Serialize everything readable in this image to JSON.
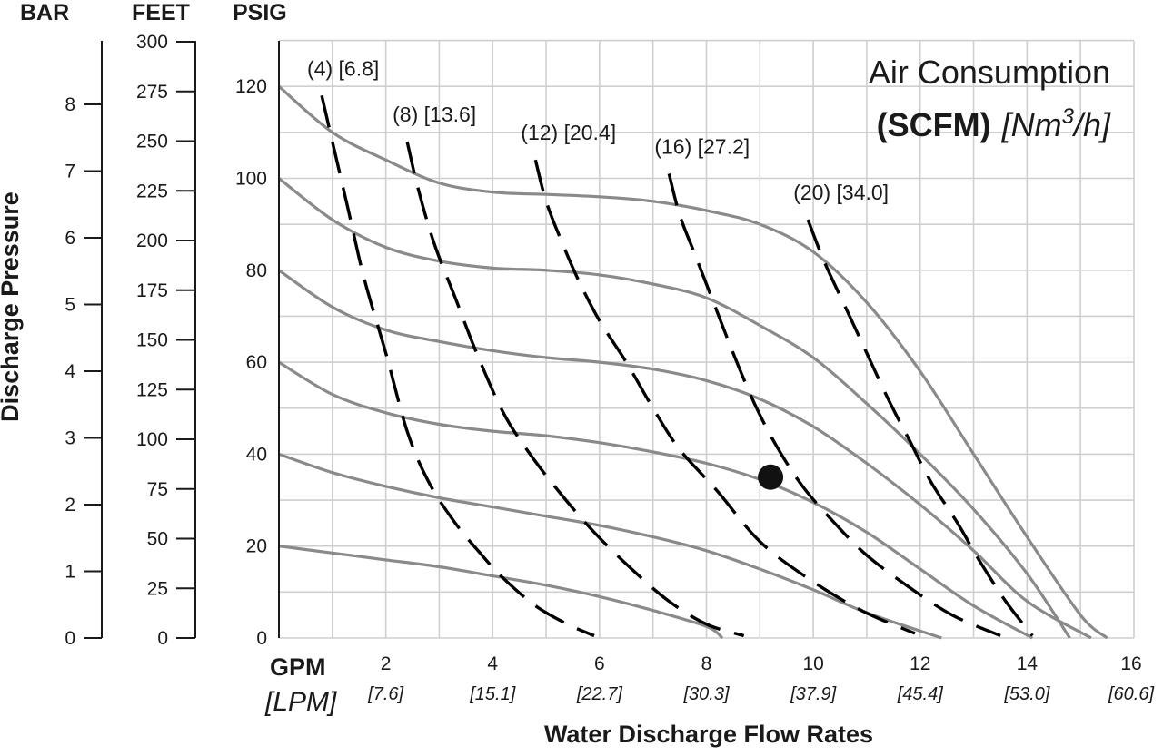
{
  "chart_data": {
    "type": "line",
    "title": "Air Consumption",
    "title_unit_bold": "(SCFM)",
    "title_unit_italic_pre": "[Nm",
    "title_unit_italic_sup": "3",
    "title_unit_italic_post": "/h]",
    "xlabel": "Water Discharge Flow Rates",
    "ylabel": "Discharge Pressure",
    "x_unit_primary": "GPM",
    "x_unit_secondary": "[LPM]",
    "xlim": [
      0,
      16
    ],
    "ylim": [
      0,
      130
    ],
    "grid": true,
    "x_ticks": [
      {
        "value": 2,
        "label": "2",
        "sub": "[7.6]"
      },
      {
        "value": 4,
        "label": "4",
        "sub": "[15.1]"
      },
      {
        "value": 6,
        "label": "6",
        "sub": "[22.7]"
      },
      {
        "value": 8,
        "label": "8",
        "sub": "[30.3]"
      },
      {
        "value": 10,
        "label": "10",
        "sub": "[37.9]"
      },
      {
        "value": 12,
        "label": "12",
        "sub": "[45.4]"
      },
      {
        "value": 14,
        "label": "14",
        "sub": "[53.0]"
      },
      {
        "value": 16,
        "label": "16",
        "sub": "[60.6]"
      }
    ],
    "psig_axis": {
      "header": "PSIG",
      "ticks": [
        0,
        20,
        40,
        60,
        80,
        100,
        120
      ]
    },
    "feet_axis": {
      "header": "FEET",
      "ticks": [
        0,
        25,
        50,
        75,
        100,
        125,
        150,
        175,
        200,
        225,
        250,
        275,
        300
      ]
    },
    "bar_axis": {
      "header": "BAR",
      "ticks": [
        0,
        1,
        2,
        3,
        4,
        5,
        6,
        7,
        8
      ]
    },
    "performance_curves": [
      {
        "points": [
          [
            0,
            120
          ],
          [
            1,
            110
          ],
          [
            2,
            104
          ],
          [
            3,
            99
          ],
          [
            4,
            97
          ],
          [
            5,
            96.5
          ],
          [
            6,
            96
          ],
          [
            7,
            95
          ],
          [
            8,
            93
          ],
          [
            9,
            90
          ],
          [
            10,
            84
          ],
          [
            11,
            73
          ],
          [
            12,
            58
          ],
          [
            13,
            40
          ],
          [
            14,
            22
          ],
          [
            15,
            5
          ],
          [
            15.5,
            0
          ]
        ]
      },
      {
        "points": [
          [
            0,
            100
          ],
          [
            1,
            91
          ],
          [
            2,
            85
          ],
          [
            3,
            82
          ],
          [
            4,
            80.5
          ],
          [
            5,
            80
          ],
          [
            6,
            79
          ],
          [
            7,
            77
          ],
          [
            8,
            74
          ],
          [
            9,
            68
          ],
          [
            10,
            61
          ],
          [
            11,
            51
          ],
          [
            12,
            40
          ],
          [
            13,
            28
          ],
          [
            14,
            14
          ],
          [
            14.8,
            0
          ]
        ]
      },
      {
        "points": [
          [
            0,
            80
          ],
          [
            1,
            72
          ],
          [
            2,
            67
          ],
          [
            3,
            64.5
          ],
          [
            4,
            62.5
          ],
          [
            5,
            61
          ],
          [
            6,
            60
          ],
          [
            7,
            58.5
          ],
          [
            8,
            56
          ],
          [
            9,
            52
          ],
          [
            10,
            46
          ],
          [
            11,
            38
          ],
          [
            12,
            29
          ],
          [
            13,
            19
          ],
          [
            14,
            8
          ],
          [
            15.2,
            0
          ]
        ]
      },
      {
        "points": [
          [
            0,
            60
          ],
          [
            1,
            53
          ],
          [
            2,
            49
          ],
          [
            3,
            46.5
          ],
          [
            4,
            45
          ],
          [
            5,
            44
          ],
          [
            6,
            42.5
          ],
          [
            7,
            40.5
          ],
          [
            8,
            38
          ],
          [
            9,
            34.5
          ],
          [
            10,
            29.5
          ],
          [
            11,
            23
          ],
          [
            12,
            15
          ],
          [
            13,
            7
          ],
          [
            14.1,
            0
          ]
        ]
      },
      {
        "points": [
          [
            0,
            40
          ],
          [
            1,
            36
          ],
          [
            2,
            33
          ],
          [
            3,
            30.5
          ],
          [
            4,
            28.5
          ],
          [
            5,
            26.5
          ],
          [
            6,
            24.5
          ],
          [
            7,
            22
          ],
          [
            8,
            19
          ],
          [
            9,
            15
          ],
          [
            10,
            10.5
          ],
          [
            11,
            5.5
          ],
          [
            12.4,
            0
          ]
        ]
      },
      {
        "points": [
          [
            0,
            20
          ],
          [
            1,
            18.5
          ],
          [
            2,
            17
          ],
          [
            3,
            15.5
          ],
          [
            4,
            13.5
          ],
          [
            5,
            11.5
          ],
          [
            6,
            9
          ],
          [
            7,
            6
          ],
          [
            8,
            2.5
          ],
          [
            8.3,
            0
          ]
        ]
      }
    ],
    "air_consumption_curves": [
      {
        "label": "(4) [6.8]",
        "points": [
          [
            0.8,
            118
          ],
          [
            1.0,
            108
          ],
          [
            1.3,
            93
          ],
          [
            1.6,
            78
          ],
          [
            2.0,
            62
          ],
          [
            2.4,
            45
          ],
          [
            2.8,
            34
          ],
          [
            3.3,
            25
          ],
          [
            3.8,
            18
          ],
          [
            4.2,
            13
          ],
          [
            4.8,
            7
          ],
          [
            5.4,
            3
          ],
          [
            5.9,
            0.5
          ]
        ]
      },
      {
        "label": "(8) [13.6]",
        "points": [
          [
            2.4,
            108
          ],
          [
            2.6,
            98
          ],
          [
            2.9,
            86
          ],
          [
            3.3,
            74
          ],
          [
            3.7,
            62
          ],
          [
            4.2,
            49
          ],
          [
            4.7,
            40
          ],
          [
            5.3,
            31
          ],
          [
            5.9,
            23
          ],
          [
            6.6,
            15
          ],
          [
            7.3,
            8
          ],
          [
            8.0,
            3
          ],
          [
            8.7,
            0.5
          ]
        ]
      },
      {
        "label": "(12) [20.4]",
        "points": [
          [
            4.8,
            104
          ],
          [
            5.0,
            95
          ],
          [
            5.3,
            86
          ],
          [
            5.6,
            78
          ],
          [
            6.0,
            69
          ],
          [
            6.5,
            60
          ],
          [
            7.0,
            50
          ],
          [
            7.5,
            41
          ],
          [
            8.2,
            32
          ],
          [
            9.0,
            21
          ],
          [
            9.9,
            13
          ],
          [
            10.9,
            6
          ],
          [
            11.9,
            1
          ]
        ]
      },
      {
        "label": "(16) [27.2]",
        "points": [
          [
            7.3,
            101
          ],
          [
            7.5,
            92
          ],
          [
            7.8,
            83
          ],
          [
            8.1,
            74
          ],
          [
            8.5,
            62
          ],
          [
            8.9,
            51
          ],
          [
            9.3,
            42
          ],
          [
            9.8,
            33
          ],
          [
            10.4,
            25
          ],
          [
            11.0,
            18
          ],
          [
            11.8,
            11
          ],
          [
            12.6,
            5
          ],
          [
            13.5,
            0.5
          ]
        ]
      },
      {
        "label": "(20) [34.0]",
        "points": [
          [
            9.9,
            91
          ],
          [
            10.2,
            82
          ],
          [
            10.6,
            72
          ],
          [
            11.0,
            62
          ],
          [
            11.4,
            52
          ],
          [
            11.8,
            43
          ],
          [
            12.2,
            34
          ],
          [
            12.7,
            25
          ],
          [
            13.1,
            17
          ],
          [
            13.6,
            8
          ],
          [
            14.1,
            0.5
          ]
        ]
      }
    ],
    "marker": {
      "x": 9.2,
      "y": 35
    }
  }
}
